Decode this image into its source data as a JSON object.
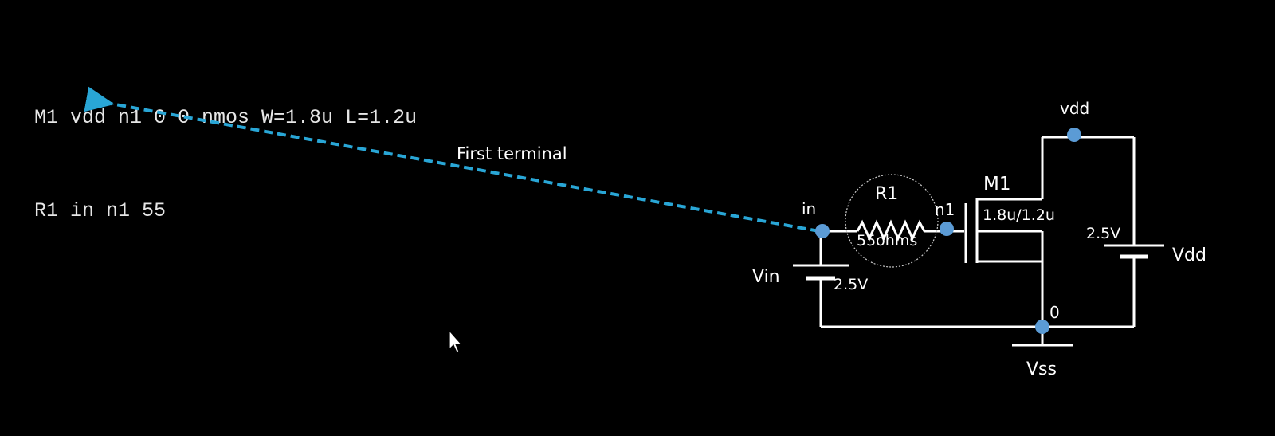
{
  "netlist": {
    "lines": [
      "M1 vdd n1 0 0 nmos W=1.8u L=1.2u",
      "R1 in n1 55"
    ]
  },
  "annotation": {
    "label": "First terminal",
    "color": "#29a6d6"
  },
  "circuit": {
    "node_in": "in",
    "node_n1": "n1",
    "node_vdd": "vdd",
    "node_zero": "0",
    "resistor_name": "R1",
    "resistor_value": "55ohms",
    "transistor_name": "M1",
    "transistor_size": "1.8u/1.2u",
    "vin_name": "Vin",
    "vin_value": "2.5V",
    "vdd_name": "Vdd",
    "vdd_value": "2.5V",
    "ground_name": "Vss",
    "node_color": "#5b9bd5",
    "wire_color": "#ffffff"
  }
}
